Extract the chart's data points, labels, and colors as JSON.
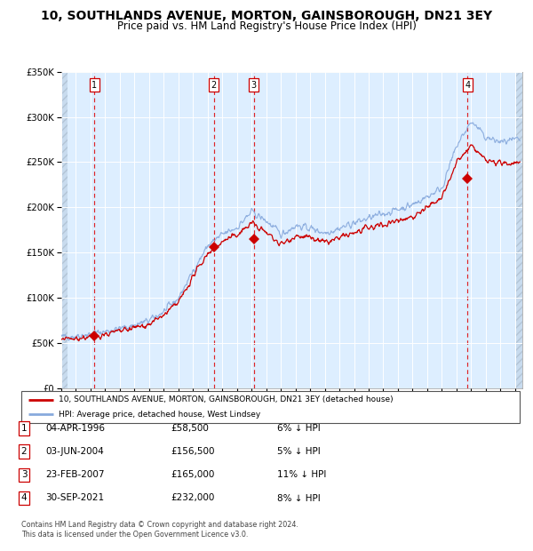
{
  "title": "10, SOUTHLANDS AVENUE, MORTON, GAINSBOROUGH, DN21 3EY",
  "subtitle": "Price paid vs. HM Land Registry's House Price Index (HPI)",
  "title_fontsize": 10,
  "subtitle_fontsize": 8.5,
  "bg_color": "#ddeeff",
  "grid_color": "#ffffff",
  "sale_dates": [
    1996.27,
    2004.42,
    2007.15,
    2021.75
  ],
  "sale_prices": [
    58500,
    156500,
    165000,
    232000
  ],
  "sale_labels": [
    "1",
    "2",
    "3",
    "4"
  ],
  "legend_property": "10, SOUTHLANDS AVENUE, MORTON, GAINSBOROUGH, DN21 3EY (detached house)",
  "legend_hpi": "HPI: Average price, detached house, West Lindsey",
  "table_data": [
    [
      "1",
      "04-APR-1996",
      "£58,500",
      "6% ↓ HPI"
    ],
    [
      "2",
      "03-JUN-2004",
      "£156,500",
      "5% ↓ HPI"
    ],
    [
      "3",
      "23-FEB-2007",
      "£165,000",
      "11% ↓ HPI"
    ],
    [
      "4",
      "30-SEP-2021",
      "£232,000",
      "8% ↓ HPI"
    ]
  ],
  "footnote1": "Contains HM Land Registry data © Crown copyright and database right 2024.",
  "footnote2": "This data is licensed under the Open Government Licence v3.0.",
  "ylim": [
    0,
    350000
  ],
  "yticks": [
    0,
    50000,
    100000,
    150000,
    200000,
    250000,
    300000,
    350000
  ],
  "ytick_labels": [
    "£0",
    "£50K",
    "£100K",
    "£150K",
    "£200K",
    "£250K",
    "£300K",
    "£350K"
  ],
  "xlim_start": 1994.0,
  "xlim_end": 2025.5,
  "red_line_color": "#cc0000",
  "blue_line_color": "#88aadd",
  "marker_color": "#cc0000",
  "dashed_vline_color": "#dd0000",
  "box_color": "#cc0000",
  "hatch_color": "#c0d4e8"
}
